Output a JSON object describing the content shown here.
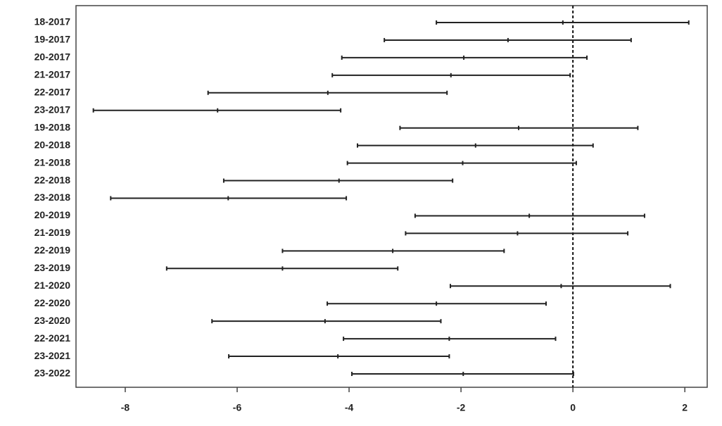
{
  "chart_data": {
    "type": "interval",
    "categories": [
      "18-2017",
      "19-2017",
      "20-2017",
      "21-2017",
      "22-2017",
      "23-2017",
      "19-2018",
      "20-2018",
      "21-2018",
      "22-2018",
      "23-2018",
      "20-2019",
      "21-2019",
      "22-2019",
      "23-2019",
      "21-2020",
      "22-2020",
      "23-2020",
      "22-2021",
      "23-2021",
      "23-2022"
    ],
    "lower": [
      -2.44,
      -3.37,
      -4.13,
      -4.3,
      -6.52,
      -8.57,
      -3.09,
      -3.85,
      -4.03,
      -6.24,
      -8.26,
      -2.82,
      -2.99,
      -5.19,
      -7.26,
      -2.19,
      -4.39,
      -6.45,
      -4.1,
      -6.15,
      -3.95
    ],
    "values": [
      -0.18,
      -1.16,
      -1.95,
      -2.18,
      -4.38,
      -6.35,
      -0.97,
      -1.74,
      -1.97,
      -4.18,
      -6.16,
      -0.78,
      -0.99,
      -3.22,
      -5.19,
      -0.21,
      -2.44,
      -4.43,
      -2.21,
      -4.2,
      -1.96
    ],
    "upper": [
      2.07,
      1.04,
      0.25,
      -0.05,
      -2.25,
      -4.15,
      1.16,
      0.36,
      0.06,
      -2.15,
      -4.05,
      1.28,
      0.98,
      -1.23,
      -3.13,
      1.74,
      -0.48,
      -2.36,
      -0.31,
      -2.21,
      0.01
    ],
    "color": "#222",
    "reference_line": 0,
    "xlim": [
      -8.88,
      2.4
    ],
    "xticks": [
      -8,
      -6,
      -4,
      -2,
      0,
      2
    ]
  }
}
